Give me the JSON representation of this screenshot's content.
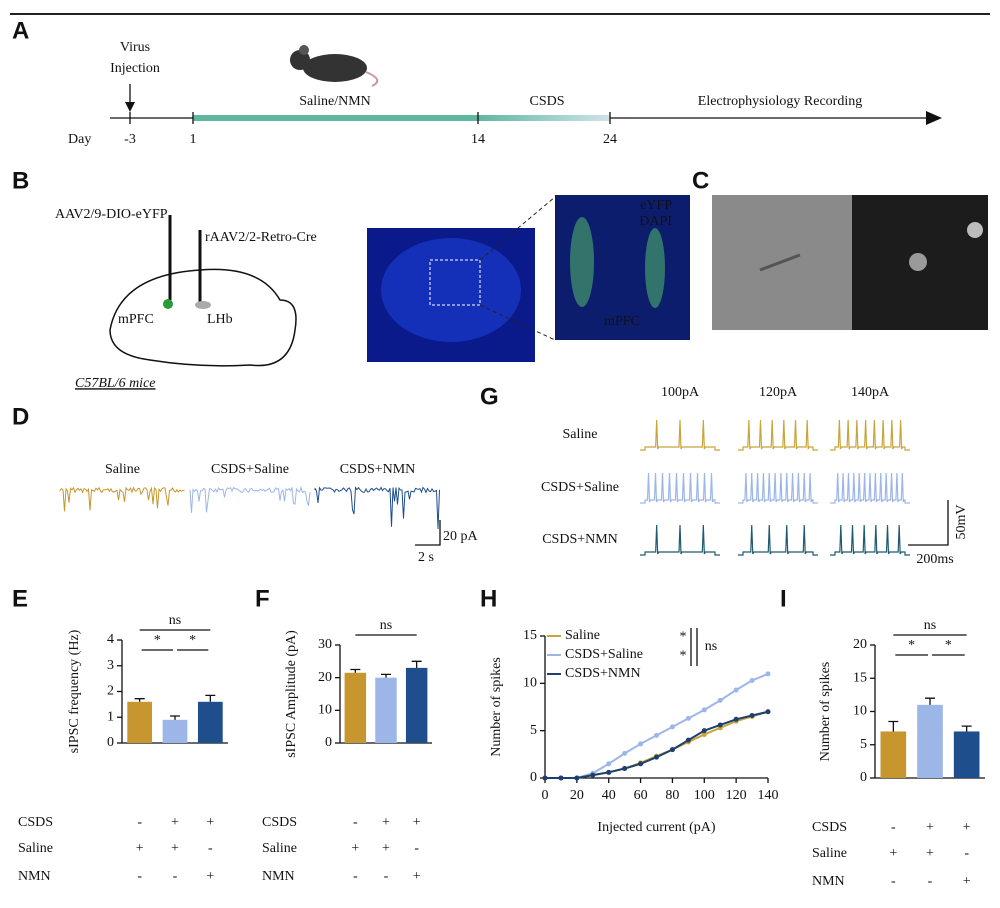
{
  "panel_labels": [
    "A",
    "B",
    "C",
    "D",
    "E",
    "F",
    "G",
    "H",
    "I"
  ],
  "timeline": {
    "virus_label": [
      "Virus",
      "Injection"
    ],
    "phases": [
      "Saline/NMN",
      "CSDS",
      "Electrophysiology Recording"
    ],
    "day_label": "Day",
    "days": [
      "-3",
      "1",
      "14",
      "24"
    ]
  },
  "surgery": {
    "injections": [
      "AAV2/9-DIO-eYFP",
      "rAAV2/2-Retro-Cre"
    ],
    "regions": [
      "mPFC",
      "LHb"
    ],
    "strain": "C57BL/6 mice",
    "inset_labels": [
      "eYFP",
      "DAPI",
      "mPFC"
    ]
  },
  "traces_sipsc": {
    "groups": [
      "Saline",
      "CSDS+Saline",
      "CSDS+NMN"
    ],
    "scale_y": "20 pA",
    "scale_x": "2 s"
  },
  "traces_firing": {
    "currents": [
      "100pA",
      "120pA",
      "140pA"
    ],
    "groups": [
      "Saline",
      "CSDS+Saline",
      "CSDS+NMN"
    ],
    "scale_y": "50mV",
    "scale_x": "200ms"
  },
  "chart_data": [
    {
      "type": "bar",
      "ylabel": "sIPSC frequency (Hz)",
      "categories": [
        null,
        null,
        null
      ],
      "values": [
        1.6,
        0.9,
        1.6
      ],
      "errors": [
        0.12,
        0.15,
        0.25
      ],
      "colors": [
        "#c8962e",
        "#9db6e8",
        "#1f4e8c"
      ],
      "ylim": [
        0,
        4
      ],
      "yticks": [
        0,
        1,
        2,
        3,
        4
      ],
      "significance": [
        "ns",
        "*",
        "*"
      ],
      "conditions": [
        {
          "name": "CSDS",
          "signs": [
            "-",
            "+",
            "+"
          ]
        },
        {
          "name": "Saline",
          "signs": [
            "+",
            "+",
            "-"
          ]
        },
        {
          "name": "NMN",
          "signs": [
            "-",
            "-",
            "+"
          ]
        }
      ]
    },
    {
      "type": "bar",
      "ylabel": "sIPSC Amplitude (pA)",
      "categories": [
        null,
        null,
        null
      ],
      "values": [
        21.5,
        20,
        23
      ],
      "errors": [
        1,
        1,
        2
      ],
      "colors": [
        "#c8962e",
        "#9db6e8",
        "#1f4e8c"
      ],
      "ylim": [
        0,
        30
      ],
      "yticks": [
        0,
        10,
        20,
        30
      ],
      "significance": [
        "ns"
      ],
      "conditions": [
        {
          "name": "CSDS",
          "signs": [
            "-",
            "+",
            "+"
          ]
        },
        {
          "name": "Saline",
          "signs": [
            "+",
            "+",
            "-"
          ]
        },
        {
          "name": "NMN",
          "signs": [
            "-",
            "-",
            "+"
          ]
        }
      ]
    },
    {
      "type": "line",
      "xlabel": "Injected current (pA)",
      "ylabel": "Number of spikes",
      "x": [
        0,
        10,
        20,
        30,
        40,
        50,
        60,
        70,
        80,
        90,
        100,
        110,
        120,
        130,
        140
      ],
      "series": [
        {
          "name": "Saline",
          "color": "#c8a43a",
          "values": [
            0,
            0,
            0,
            0.3,
            0.6,
            1,
            1.6,
            2.3,
            3,
            3.8,
            4.6,
            5.3,
            6,
            6.5,
            7
          ]
        },
        {
          "name": "CSDS+Saline",
          "color": "#9db6e8",
          "values": [
            0,
            0,
            0,
            0.5,
            1.5,
            2.6,
            3.6,
            4.5,
            5.4,
            6.3,
            7.2,
            8.2,
            9.3,
            10.3,
            11
          ]
        },
        {
          "name": "CSDS+NMN",
          "color": "#1f3f6e",
          "values": [
            0,
            0,
            0,
            0.3,
            0.6,
            1,
            1.5,
            2.2,
            3,
            4,
            5,
            5.6,
            6.2,
            6.6,
            7
          ]
        }
      ],
      "xlim": [
        0,
        140
      ],
      "xticks": [
        0,
        20,
        40,
        60,
        80,
        100,
        120,
        140
      ],
      "ylim": [
        0,
        15
      ],
      "yticks": [
        0,
        5,
        10,
        15
      ],
      "significance": [
        "*",
        "*",
        "ns"
      ]
    },
    {
      "type": "bar",
      "ylabel": "Number of spikes",
      "categories": [
        null,
        null,
        null
      ],
      "values": [
        7,
        11,
        7
      ],
      "errors": [
        1.5,
        1,
        0.8
      ],
      "colors": [
        "#c8962e",
        "#9db6e8",
        "#1f4e8c"
      ],
      "ylim": [
        0,
        20
      ],
      "yticks": [
        0,
        5,
        10,
        15,
        20
      ],
      "significance": [
        "ns",
        "*",
        "*"
      ],
      "conditions": [
        {
          "name": "CSDS",
          "signs": [
            "-",
            "+",
            "+"
          ]
        },
        {
          "name": "Saline",
          "signs": [
            "+",
            "+",
            "-"
          ]
        },
        {
          "name": "NMN",
          "signs": [
            "-",
            "-",
            "+"
          ]
        }
      ]
    }
  ]
}
